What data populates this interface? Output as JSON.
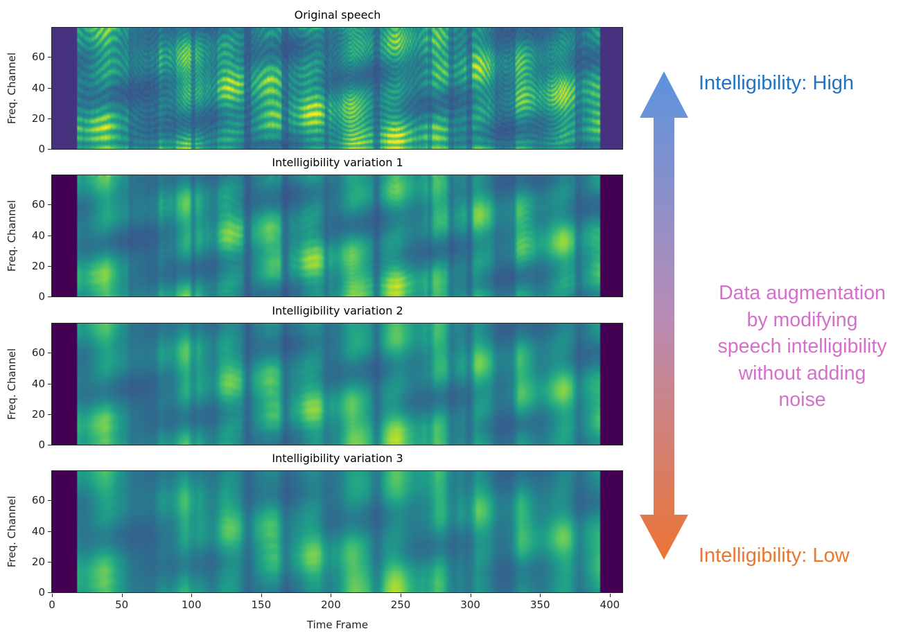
{
  "panels": [
    {
      "title": "Original speech",
      "edge_color": "#46327e",
      "smoothing": 0
    },
    {
      "title": "Intelligibility variation 1",
      "edge_color": "#440154",
      "smoothing": 1
    },
    {
      "title": "Intelligibility variation 2",
      "edge_color": "#440154",
      "smoothing": 2
    },
    {
      "title": "Intelligibility variation 3",
      "edge_color": "#440154",
      "smoothing": 3
    }
  ],
  "axes": {
    "ylabel": "Freq. Channel",
    "xlabel": "Time Frame",
    "yticks": [
      "0",
      "20",
      "40",
      "60"
    ],
    "xticks": [
      "0",
      "50",
      "100",
      "150",
      "200",
      "250",
      "300",
      "350",
      "400"
    ],
    "xlim": [
      0,
      410
    ],
    "ylim": [
      0,
      80
    ]
  },
  "colormap": "viridis",
  "arrow": {
    "top_color": "#5b93dd",
    "bottom_color": "#ec7435"
  },
  "labels": {
    "high": "Intelligibility: High",
    "high_color": "#1f73c6",
    "low": "Intelligibility: Low",
    "low_color": "#e8772f",
    "description": [
      "Data augmentation",
      "by modifying",
      "speech intelligibility",
      "without adding",
      "noise"
    ],
    "description_color": "#d66fcb"
  }
}
